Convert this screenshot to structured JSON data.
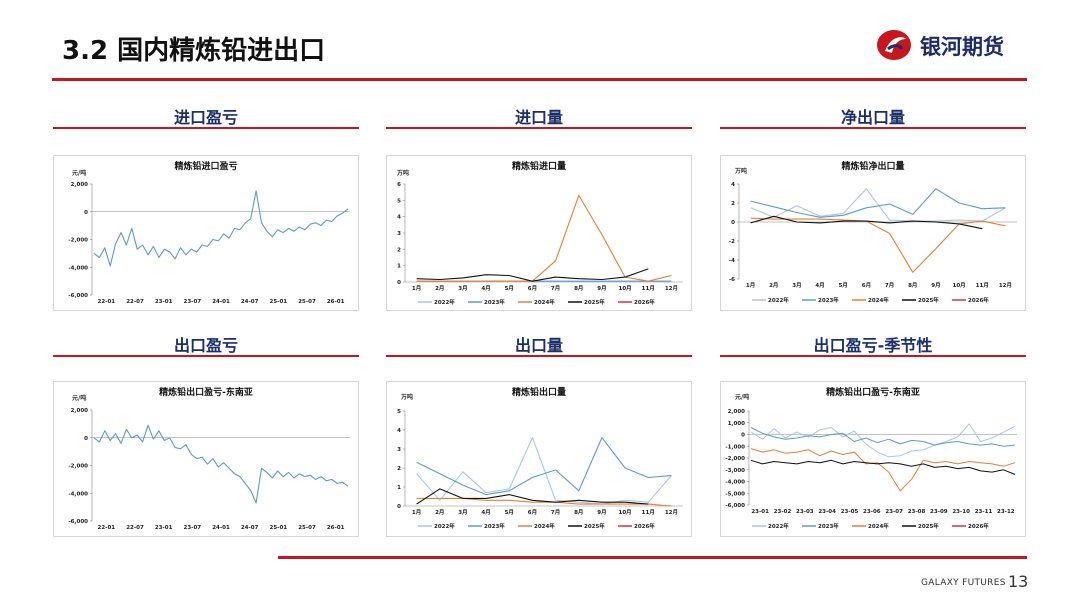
{
  "header": {
    "title": "3.2 国内精炼铅进出口",
    "logo_text": "银河期货"
  },
  "footer": {
    "brand": "GALAXY FUTURES",
    "page_number": "13"
  },
  "colors": {
    "accent_red": "#c8161d",
    "navy": "#1b2f6b",
    "y2022": "#a9c7e8",
    "y2023": "#5b9bd5",
    "y2024": "#ed7d31",
    "y2025": "#111111",
    "y2026": "#e03030"
  },
  "sections": [
    {
      "title": "进口盈亏"
    },
    {
      "title": "进口量"
    },
    {
      "title": "净出口量"
    },
    {
      "title": "出口盈亏"
    },
    {
      "title": "出口量"
    },
    {
      "title": "出口盈亏-季节性"
    }
  ],
  "chart_data": [
    {
      "type": "line",
      "title": "精炼铅进口盈亏",
      "unit": "元/吨",
      "ylim": [
        -6000,
        2000
      ],
      "yticks": [
        "2,000",
        "0",
        "-2,000",
        "-4,000",
        "-6,000"
      ],
      "xticks": [
        "22-01",
        "22-07",
        "23-01",
        "23-07",
        "24-01",
        "24-07",
        "25-01",
        "25-07",
        "26-01"
      ],
      "series": [
        {
          "color": "#5b9bd5",
          "values": [
            -3000,
            -3300,
            -2600,
            -3900,
            -2300,
            -1500,
            -2400,
            -1200,
            -2700,
            -2400,
            -3100,
            -2500,
            -3300,
            -2700,
            -2900,
            -3400,
            -2600,
            -3100,
            -2700,
            -2900,
            -2400,
            -2500,
            -2000,
            -2100,
            -1600,
            -1900,
            -1200,
            -1300,
            -800,
            -500,
            1500,
            -800,
            -1400,
            -1800,
            -1300,
            -1500,
            -1200,
            -1400,
            -1100,
            -1300,
            -900,
            -800,
            -1000,
            -600,
            -700,
            -300,
            -100,
            200
          ]
        }
      ]
    },
    {
      "type": "line",
      "title": "精炼铅进口量",
      "unit": "万吨",
      "ylim": [
        0,
        6
      ],
      "yticks": [
        "6",
        "5",
        "4",
        "3",
        "2",
        "1",
        "0"
      ],
      "categories": [
        "1月",
        "2月",
        "3月",
        "4月",
        "5月",
        "6月",
        "7月",
        "8月",
        "9月",
        "10月",
        "11月",
        "12月"
      ],
      "legend": [
        "2022年",
        "2023年",
        "2024年",
        "2025年",
        "2026年"
      ],
      "series": [
        {
          "name": "2022年",
          "color": "#a9c7e8",
          "values": [
            0.05,
            0.05,
            0.05,
            0.05,
            0.05,
            0.05,
            0.05,
            0.05,
            0.05,
            0.05,
            0.05,
            0.05
          ]
        },
        {
          "name": "2023年",
          "color": "#5b9bd5",
          "values": [
            0.05,
            0.04,
            0.05,
            0.05,
            0.06,
            0.05,
            0.05,
            0.04,
            0.05,
            0.05,
            0.05,
            0.05
          ]
        },
        {
          "name": "2024年",
          "color": "#ed7d31",
          "values": [
            0.05,
            0.05,
            0.05,
            0.05,
            0.05,
            0.05,
            1.3,
            5.3,
            2.9,
            0.3,
            0.05,
            0.4
          ]
        },
        {
          "name": "2025年",
          "color": "#111111",
          "values": [
            0.2,
            0.15,
            0.25,
            0.45,
            0.4,
            0.05,
            0.3,
            0.2,
            0.15,
            0.3,
            0.8,
            null
          ]
        },
        {
          "name": "2026年",
          "color": "#e03030",
          "values": [
            null,
            null,
            null,
            null,
            null,
            null,
            null,
            null,
            null,
            null,
            null,
            null
          ]
        }
      ]
    },
    {
      "type": "line",
      "title": "精炼铅净出口量",
      "unit": "万吨",
      "ylim": [
        -6,
        4
      ],
      "yticks": [
        "4",
        "2",
        "0",
        "-2",
        "-4",
        "-6"
      ],
      "categories": [
        "1月",
        "2月",
        "3月",
        "4月",
        "5月",
        "6月",
        "7月",
        "8月",
        "9月",
        "10月",
        "11月",
        "12月"
      ],
      "legend": [
        "2022年",
        "2023年",
        "2024年",
        "2025年",
        "2026年"
      ],
      "series": [
        {
          "name": "2022年",
          "color": "#a9c7e8",
          "values": [
            1.5,
            0.5,
            1.7,
            0.6,
            0.9,
            3.5,
            0.2,
            0.1,
            0.1,
            0.2,
            0.1,
            1.5
          ]
        },
        {
          "name": "2023年",
          "color": "#5b9bd5",
          "values": [
            2.2,
            1.6,
            1.0,
            0.5,
            0.7,
            1.5,
            1.9,
            0.8,
            3.5,
            2.0,
            1.4,
            1.5
          ]
        },
        {
          "name": "2024年",
          "color": "#ed7d31",
          "values": [
            0.4,
            0.3,
            0.3,
            0.3,
            0.2,
            0.1,
            -1.2,
            -5.3,
            -2.8,
            -0.2,
            0.1,
            -0.4
          ]
        },
        {
          "name": "2025年",
          "color": "#111111",
          "values": [
            -0.1,
            0.6,
            0.0,
            -0.1,
            0.1,
            0.1,
            -0.1,
            0.1,
            0.0,
            -0.2,
            -0.7,
            null
          ]
        },
        {
          "name": "2026年",
          "color": "#e03030",
          "values": [
            null,
            null,
            null,
            null,
            null,
            null,
            null,
            null,
            null,
            null,
            null,
            null
          ]
        }
      ]
    },
    {
      "type": "line",
      "title": "精炼铅出口盈亏-东南亚",
      "unit": "元/吨",
      "ylim": [
        -6000,
        2000
      ],
      "yticks": [
        "2,000",
        "0",
        "-2,000",
        "-4,000",
        "-6,000"
      ],
      "xticks": [
        "22-01",
        "22-07",
        "23-01",
        "23-07",
        "24-01",
        "24-07",
        "25-01",
        "25-07",
        "26-01"
      ],
      "series": [
        {
          "color": "#5b9bd5",
          "values": [
            0,
            -300,
            500,
            -200,
            300,
            -400,
            600,
            0,
            200,
            -300,
            900,
            -100,
            500,
            -200,
            0,
            -700,
            -800,
            -500,
            -1200,
            -1500,
            -1400,
            -1900,
            -1500,
            -2100,
            -1800,
            -2200,
            -2600,
            -2800,
            -3300,
            -3800,
            -4700,
            -2200,
            -2500,
            -2900,
            -2400,
            -2800,
            -2500,
            -2900,
            -2600,
            -2800,
            -2700,
            -3000,
            -2800,
            -3100,
            -3000,
            -3300,
            -3200,
            -3500
          ]
        }
      ]
    },
    {
      "type": "line",
      "title": "精炼铅出口量",
      "unit": "万吨",
      "ylim": [
        0,
        5
      ],
      "yticks": [
        "5",
        "4",
        "3",
        "2",
        "1",
        "0"
      ],
      "categories": [
        "1月",
        "2月",
        "3月",
        "4月",
        "5月",
        "6月",
        "7月",
        "8月",
        "9月",
        "10月",
        "11月",
        "12月"
      ],
      "legend": [
        "2022年",
        "2023年",
        "2024年",
        "2025年",
        "2026年"
      ],
      "series": [
        {
          "name": "2022年",
          "color": "#a9c7e8",
          "values": [
            1.7,
            0.3,
            1.8,
            0.7,
            0.9,
            3.6,
            0.3,
            0.2,
            0.1,
            0.3,
            0.2,
            1.6
          ]
        },
        {
          "name": "2023年",
          "color": "#5b9bd5",
          "values": [
            2.3,
            1.7,
            1.1,
            0.6,
            0.8,
            1.5,
            1.9,
            0.8,
            3.6,
            2.0,
            1.5,
            1.6
          ]
        },
        {
          "name": "2024年",
          "color": "#ed7d31",
          "values": [
            0.4,
            0.4,
            0.4,
            0.3,
            0.3,
            0.2,
            0.2,
            0.1,
            0.1,
            0.1,
            0.1,
            0.0
          ]
        },
        {
          "name": "2025年",
          "color": "#111111",
          "values": [
            0.1,
            0.9,
            0.4,
            0.4,
            0.6,
            0.3,
            0.2,
            0.3,
            0.2,
            0.2,
            0.1,
            null
          ]
        },
        {
          "name": "2026年",
          "color": "#e03030",
          "values": [
            null,
            null,
            null,
            null,
            null,
            null,
            null,
            null,
            null,
            null,
            null,
            null
          ]
        }
      ]
    },
    {
      "type": "line",
      "title": "精炼铅出口盈亏-东南亚",
      "unit": "元/吨",
      "ylim": [
        -6000,
        2000
      ],
      "yticks": [
        "2,000",
        "1,000",
        "0",
        "-1,000",
        "-2,000",
        "-3,000",
        "-4,000",
        "-5,000",
        "-6,000"
      ],
      "xticks": [
        "23-01",
        "23-02",
        "23-03",
        "23-04",
        "23-05",
        "23-06",
        "23-07",
        "23-08",
        "23-09",
        "23-10",
        "23-11",
        "23-12"
      ],
      "legend": [
        "2022年",
        "2023年",
        "2024年",
        "2025年",
        "2026年"
      ],
      "series": [
        {
          "name": "2022年",
          "color": "#a9c7e8",
          "values": [
            200,
            -400,
            500,
            -300,
            200,
            -200,
            400,
            600,
            -200,
            300,
            -800,
            -1500,
            -1900,
            -1800,
            -1400,
            -1300,
            -900,
            -600,
            -200,
            900,
            -600,
            -300,
            200,
            700
          ]
        },
        {
          "name": "2023年",
          "color": "#5b9bd5",
          "values": [
            600,
            100,
            -200,
            -400,
            -300,
            -100,
            -200,
            0,
            100,
            -600,
            -300,
            -700,
            -400,
            -800,
            -500,
            -600,
            -900,
            -700,
            -600,
            -800,
            -900,
            -800,
            -1000,
            -900
          ]
        },
        {
          "name": "2024年",
          "color": "#ed7d31",
          "values": [
            -1200,
            -1500,
            -1300,
            -1600,
            -1500,
            -1300,
            -1800,
            -1400,
            -1700,
            -1500,
            -2500,
            -2400,
            -3200,
            -4800,
            -3800,
            -2200,
            -2400,
            -2300,
            -2500,
            -2300,
            -2400,
            -2500,
            -2700,
            -2400
          ]
        },
        {
          "name": "2025年",
          "color": "#111111",
          "values": [
            -2200,
            -2500,
            -2300,
            -2400,
            -2500,
            -2300,
            -2400,
            -2200,
            -2500,
            -2300,
            -2400,
            -2500,
            -2400,
            -2500,
            -2700,
            -2500,
            -2800,
            -2700,
            -2900,
            -2800,
            -3100,
            -3200,
            -3000,
            -3400
          ]
        },
        {
          "name": "2026年",
          "color": "#e03030",
          "values": []
        }
      ]
    }
  ]
}
